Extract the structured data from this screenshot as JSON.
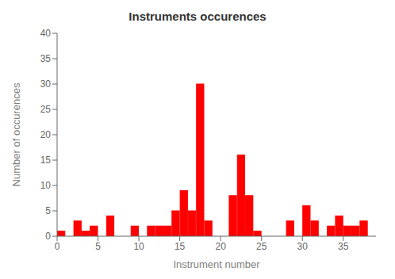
{
  "chart_data": {
    "type": "bar",
    "title": "Instruments occurences",
    "xlabel": "Instrument number",
    "ylabel": "Number of occurences",
    "x": [
      0,
      1,
      2,
      3,
      4,
      5,
      6,
      7,
      8,
      9,
      10,
      11,
      12,
      13,
      14,
      15,
      16,
      17,
      18,
      19,
      20,
      21,
      22,
      23,
      24,
      25,
      26,
      27,
      28,
      29,
      30,
      31,
      32,
      33,
      34,
      35,
      36,
      37,
      38
    ],
    "values": [
      1,
      0,
      3,
      1,
      2,
      0,
      4,
      0,
      0,
      2,
      0,
      2,
      2,
      2,
      5,
      9,
      5,
      30,
      3,
      0,
      0,
      8,
      16,
      8,
      1,
      0,
      0,
      0,
      3,
      0,
      6,
      3,
      0,
      2,
      4,
      2,
      2,
      3,
      0
    ],
    "color": "#ff0000",
    "xlim": [
      0,
      39
    ],
    "ylim": [
      0,
      40
    ],
    "xticks": [
      0,
      5,
      10,
      15,
      20,
      25,
      30,
      35
    ],
    "yticks": [
      0,
      5,
      10,
      15,
      20,
      25,
      30,
      35,
      40
    ],
    "grid": false
  }
}
